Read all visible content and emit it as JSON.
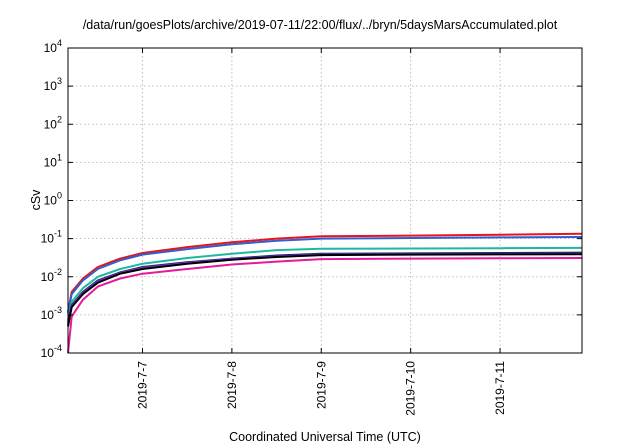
{
  "chart_data": {
    "type": "line",
    "title": "/data/run/goesPlots/archive/2019-07-11/22:00/flux/../bryn/5daysMarsAccumulated.plot",
    "xlabel": "Coordinated Universal Time (UTC)",
    "ylabel": "cSv",
    "y_scale": "log",
    "ylim": [
      0.0001,
      10000
    ],
    "y_ticks": [
      {
        "value": 0.0001,
        "base": "10",
        "exp": "-4"
      },
      {
        "value": 0.001,
        "base": "10",
        "exp": "-3"
      },
      {
        "value": 0.01,
        "base": "10",
        "exp": "-2"
      },
      {
        "value": 0.1,
        "base": "10",
        "exp": "-1"
      },
      {
        "value": 1,
        "base": "10",
        "exp": "0"
      },
      {
        "value": 10,
        "base": "10",
        "exp": "1"
      },
      {
        "value": 100,
        "base": "10",
        "exp": "2"
      },
      {
        "value": 1000,
        "base": "10",
        "exp": "3"
      },
      {
        "value": 10000,
        "base": "10",
        "exp": "4"
      }
    ],
    "xlim": [
      "2019-07-06 04:00",
      "2019-07-11 22:00"
    ],
    "x_ticks": [
      "2019-7-7",
      "2019-7-8",
      "2019-7-9",
      "2019-7-10",
      "2019-7-11"
    ],
    "grid": true,
    "x": [
      "2019-07-06 04:00",
      "2019-07-06 05:00",
      "2019-07-06 08:00",
      "2019-07-06 12:00",
      "2019-07-06 18:00",
      "2019-07-07 00:00",
      "2019-07-07 12:00",
      "2019-07-08 00:00",
      "2019-07-08 12:00",
      "2019-07-09 00:00",
      "2019-07-10 00:00",
      "2019-07-11 00:00",
      "2019-07-11 22:00"
    ],
    "series": [
      {
        "color": "#e8141c",
        "values": [
          0.0012,
          0.004,
          0.009,
          0.018,
          0.03,
          0.042,
          0.06,
          0.08,
          0.1,
          0.115,
          0.12,
          0.127,
          0.135
        ]
      },
      {
        "color": "#2f5fd0",
        "values": [
          0.0011,
          0.0035,
          0.008,
          0.016,
          0.027,
          0.038,
          0.053,
          0.071,
          0.088,
          0.1,
          0.104,
          0.108,
          0.11
        ]
      },
      {
        "color": "#1cb8a0",
        "values": [
          0.0007,
          0.0022,
          0.005,
          0.01,
          0.016,
          0.022,
          0.031,
          0.04,
          0.05,
          0.054,
          0.055,
          0.056,
          0.057
        ]
      },
      {
        "color": "#1e2a5a",
        "values": [
          0.0006,
          0.0018,
          0.004,
          0.008,
          0.013,
          0.018,
          0.024,
          0.03,
          0.036,
          0.04,
          0.041,
          0.042,
          0.043
        ]
      },
      {
        "color": "#8a2be2",
        "values": [
          0.00055,
          0.0017,
          0.0037,
          0.0075,
          0.0125,
          0.017,
          0.023,
          0.029,
          0.034,
          0.038,
          0.039,
          0.0395,
          0.04
        ]
      },
      {
        "color": "#000000",
        "values": [
          0.0005,
          0.0016,
          0.0035,
          0.007,
          0.012,
          0.016,
          0.022,
          0.028,
          0.033,
          0.037,
          0.038,
          0.0385,
          0.039
        ]
      },
      {
        "color": "#e6199a",
        "values": [
          0.0001,
          0.0009,
          0.0025,
          0.0055,
          0.009,
          0.012,
          0.016,
          0.021,
          0.025,
          0.029,
          0.03,
          0.0305,
          0.031
        ]
      }
    ]
  }
}
